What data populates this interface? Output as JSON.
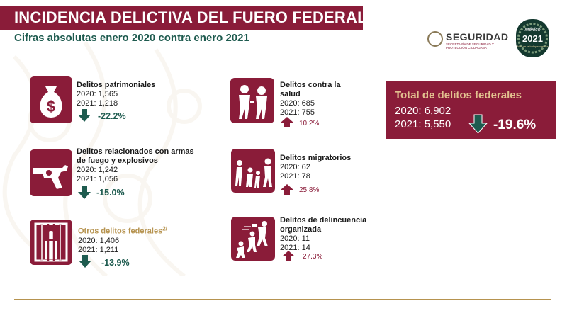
{
  "header": {
    "title": "INCIDENCIA DELICTIVA DEL FUERO FEDERAL",
    "subtitle": "Cifras absolutas enero 2020 contra enero 2021"
  },
  "logos": {
    "seguridad_text": "SEGURIDAD",
    "seguridad_sub": "SECRETARÍA DE SEGURIDAD Y PROTECCIÓN CIUDADANA",
    "badge_top": "México",
    "badge_year": "2021",
    "badge_bottom": "Año de la Independencia"
  },
  "categories": [
    {
      "id": "patrimoniales",
      "name": "Delitos patrimoniales",
      "y2020": "2020: 1,565",
      "y2021": "2021: 1,218",
      "change": "-22.2%",
      "trend": "down",
      "icon": "money-bag-icon"
    },
    {
      "id": "armas",
      "name": "Delitos relacionados con armas de fuego y explosivos",
      "y2020": "2020: 1,242",
      "y2021": "2021: 1,056",
      "change": "-15.0%",
      "trend": "down",
      "icon": "revolver-icon"
    },
    {
      "id": "otros",
      "name": "Otros delitos federales",
      "superscript": "2/",
      "y2020": "2020: 1,406",
      "y2021": "2021: 1,211",
      "change": "-13.9%",
      "trend": "down",
      "icon": "prisoner-bars-icon"
    },
    {
      "id": "salud",
      "name": "Delitos contra la salud",
      "y2020": "2020: 685",
      "y2021": "2021: 755",
      "change": "10.2%",
      "trend": "up",
      "icon": "drug-dealer-icon"
    },
    {
      "id": "migratorios",
      "name": "Delitos migratorios",
      "y2020": "2020: 62",
      "y2021": "2021: 78",
      "change": "25.8%",
      "trend": "up",
      "icon": "migrant-family-icon"
    },
    {
      "id": "delincuencia",
      "name": "Delitos de delincuencia organizada",
      "y2020": "2020: 11",
      "y2021": "2021: 14",
      "change": "27.3%",
      "trend": "up",
      "icon": "organized-crime-icon"
    }
  ],
  "total": {
    "title": "Total de delitos federales",
    "y2020": "2020: 6,902",
    "y2021": "2021: 5,550",
    "change": "-19.6%",
    "trend": "down"
  },
  "colors": {
    "maroon": "#8a1c39",
    "green": "#1e5b4f",
    "gold": "#b6934f"
  }
}
